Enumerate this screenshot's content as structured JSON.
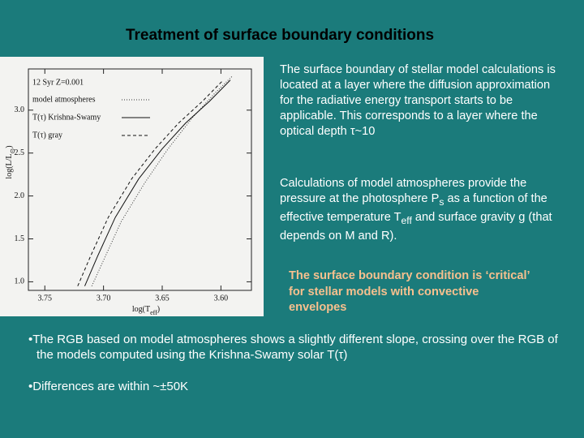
{
  "slide": {
    "title": "Treatment of surface boundary conditions",
    "paragraphs": [
      [
        "The surface boundary of stellar model calculations is located at a layer where the diffusion approximation for the radiative energy transport starts to be applicable. This corresponds to a layer where the optical depth τ~10"
      ],
      [
        "Calculations of model atmospheres provide the pressure at the photosphere P",
        {
          "sub": "s"
        },
        " as a function of the effective temperature T",
        {
          "sub": "eff"
        },
        " and surface gravity g (that depends on M and R)."
      ]
    ],
    "highlight": "The surface boundary condition is ‘critical’ for stellar models with convective envelopes",
    "bullets": [
      "•The RGB based on model atmospheres shows a slightly different slope, crossing over the RGB of the models computed using the Krishna-Swamy solar T(τ)",
      "•Differences are within ~±50K"
    ]
  },
  "chart_data": {
    "type": "line",
    "legend_title": "12 Syr Z=0.001",
    "x_label": [
      "log(T",
      {
        "sub": "eff"
      },
      ")"
    ],
    "y_label": [
      "log(L/L",
      {
        "sub": "⊙"
      },
      ")"
    ],
    "xlim": [
      3.764,
      3.574
    ],
    "ylim": [
      0.9,
      3.48
    ],
    "xticks": [
      3.75,
      {
        "value": 3.7,
        "label": "3.70"
      },
      3.65,
      {
        "value": 3.6,
        "label": "3.60"
      }
    ],
    "yticks": [
      {
        "value": 1,
        "label": "1.0"
      },
      1.5,
      {
        "value": 2,
        "label": "2.0"
      },
      2.5,
      {
        "value": 3,
        "label": "3.0"
      }
    ],
    "series": [
      {
        "name": "model atmospheres",
        "color": "#333333",
        "style": "dotted",
        "x": [
          3.71,
          3.7,
          3.685,
          3.665,
          3.645,
          3.625,
          3.605,
          3.59
        ],
        "values": [
          0.95,
          1.25,
          1.7,
          2.15,
          2.55,
          2.9,
          3.2,
          3.4
        ]
      },
      {
        "name": "T(τ) Krishna-Swamy",
        "color": "#111111",
        "style": "solid",
        "x": [
          3.716,
          3.705,
          3.69,
          3.67,
          3.65,
          3.63,
          3.61,
          3.592
        ],
        "values": [
          0.95,
          1.3,
          1.75,
          2.2,
          2.55,
          2.85,
          3.1,
          3.35
        ]
      },
      {
        "name": "T(τ) gray",
        "color": "#111111",
        "style": "dashed",
        "x": [
          3.722,
          3.711,
          3.696,
          3.676,
          3.656,
          3.636,
          3.616,
          3.598
        ],
        "values": [
          0.95,
          1.3,
          1.75,
          2.2,
          2.55,
          2.85,
          3.1,
          3.35
        ]
      }
    ]
  }
}
